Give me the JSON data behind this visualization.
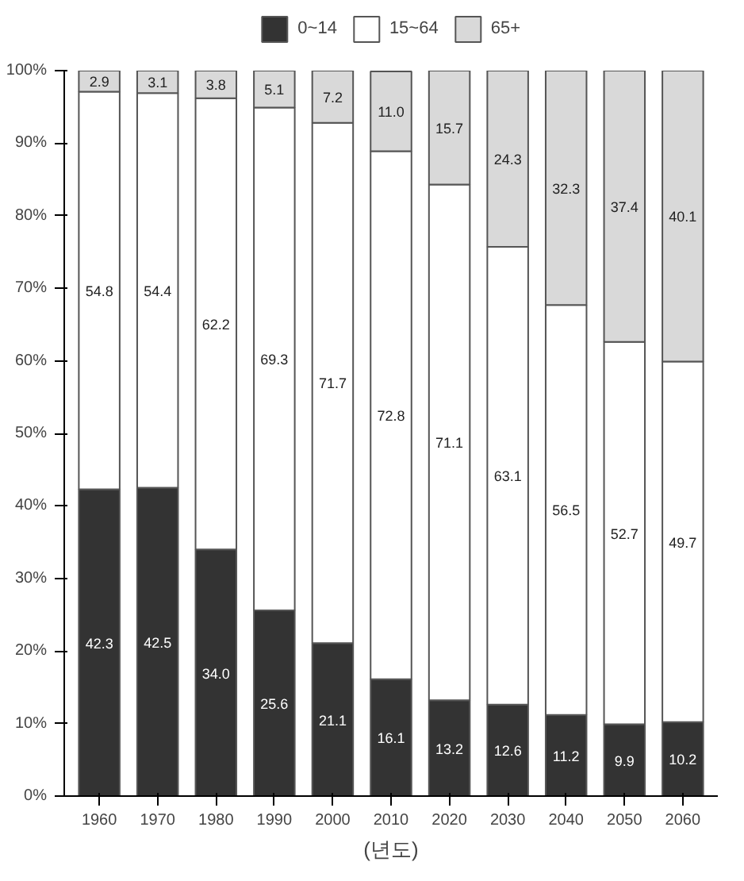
{
  "chart_data": {
    "type": "bar",
    "stacked": true,
    "xlabel": "(년도)",
    "categories": [
      "1960",
      "1970",
      "1980",
      "1990",
      "2000",
      "2010",
      "2020",
      "2030",
      "2040",
      "2050",
      "2060"
    ],
    "series": [
      {
        "name": "0~14",
        "color": "#333333",
        "values": [
          42.3,
          42.5,
          34.0,
          25.6,
          21.1,
          16.1,
          13.2,
          12.6,
          11.2,
          9.9,
          10.2
        ],
        "value_labels": [
          "42.3",
          "42.5",
          "34.0",
          "25.6",
          "21.1",
          "16.1",
          "13.2",
          "12.6",
          "11.2",
          "9.9",
          "10.2"
        ]
      },
      {
        "name": "15~64",
        "color": "#ffffff",
        "values": [
          54.8,
          54.4,
          62.2,
          69.3,
          71.7,
          72.8,
          71.1,
          63.1,
          56.5,
          52.7,
          49.7
        ],
        "value_labels": [
          "54.8",
          "54.4",
          "62.2",
          "69.3",
          "71.7",
          "72.8",
          "71.1",
          "63.1",
          "56.5",
          "52.7",
          "49.7"
        ]
      },
      {
        "name": "65+",
        "color": "#d9d9d9",
        "values": [
          2.9,
          3.1,
          3.8,
          5.1,
          7.2,
          11.0,
          15.7,
          24.3,
          32.3,
          37.4,
          40.1
        ],
        "value_labels": [
          "2.9",
          "3.1",
          "3.8",
          "5.1",
          "7.2",
          "11.0",
          "15.7",
          "24.3",
          "32.3",
          "37.4",
          "40.1"
        ]
      }
    ],
    "ylim": [
      0,
      100
    ],
    "yticks": [
      {
        "value": 0,
        "label": "0%"
      },
      {
        "value": 10,
        "label": "10%"
      },
      {
        "value": 20,
        "label": "20%"
      },
      {
        "value": 30,
        "label": "30%"
      },
      {
        "value": 40,
        "label": "40%"
      },
      {
        "value": 50,
        "label": "50%"
      },
      {
        "value": 60,
        "label": "60%"
      },
      {
        "value": 70,
        "label": "70%"
      },
      {
        "value": 80,
        "label": "80%"
      },
      {
        "value": 90,
        "label": "90%"
      },
      {
        "value": 100,
        "label": "100%"
      }
    ],
    "legend": "top"
  }
}
